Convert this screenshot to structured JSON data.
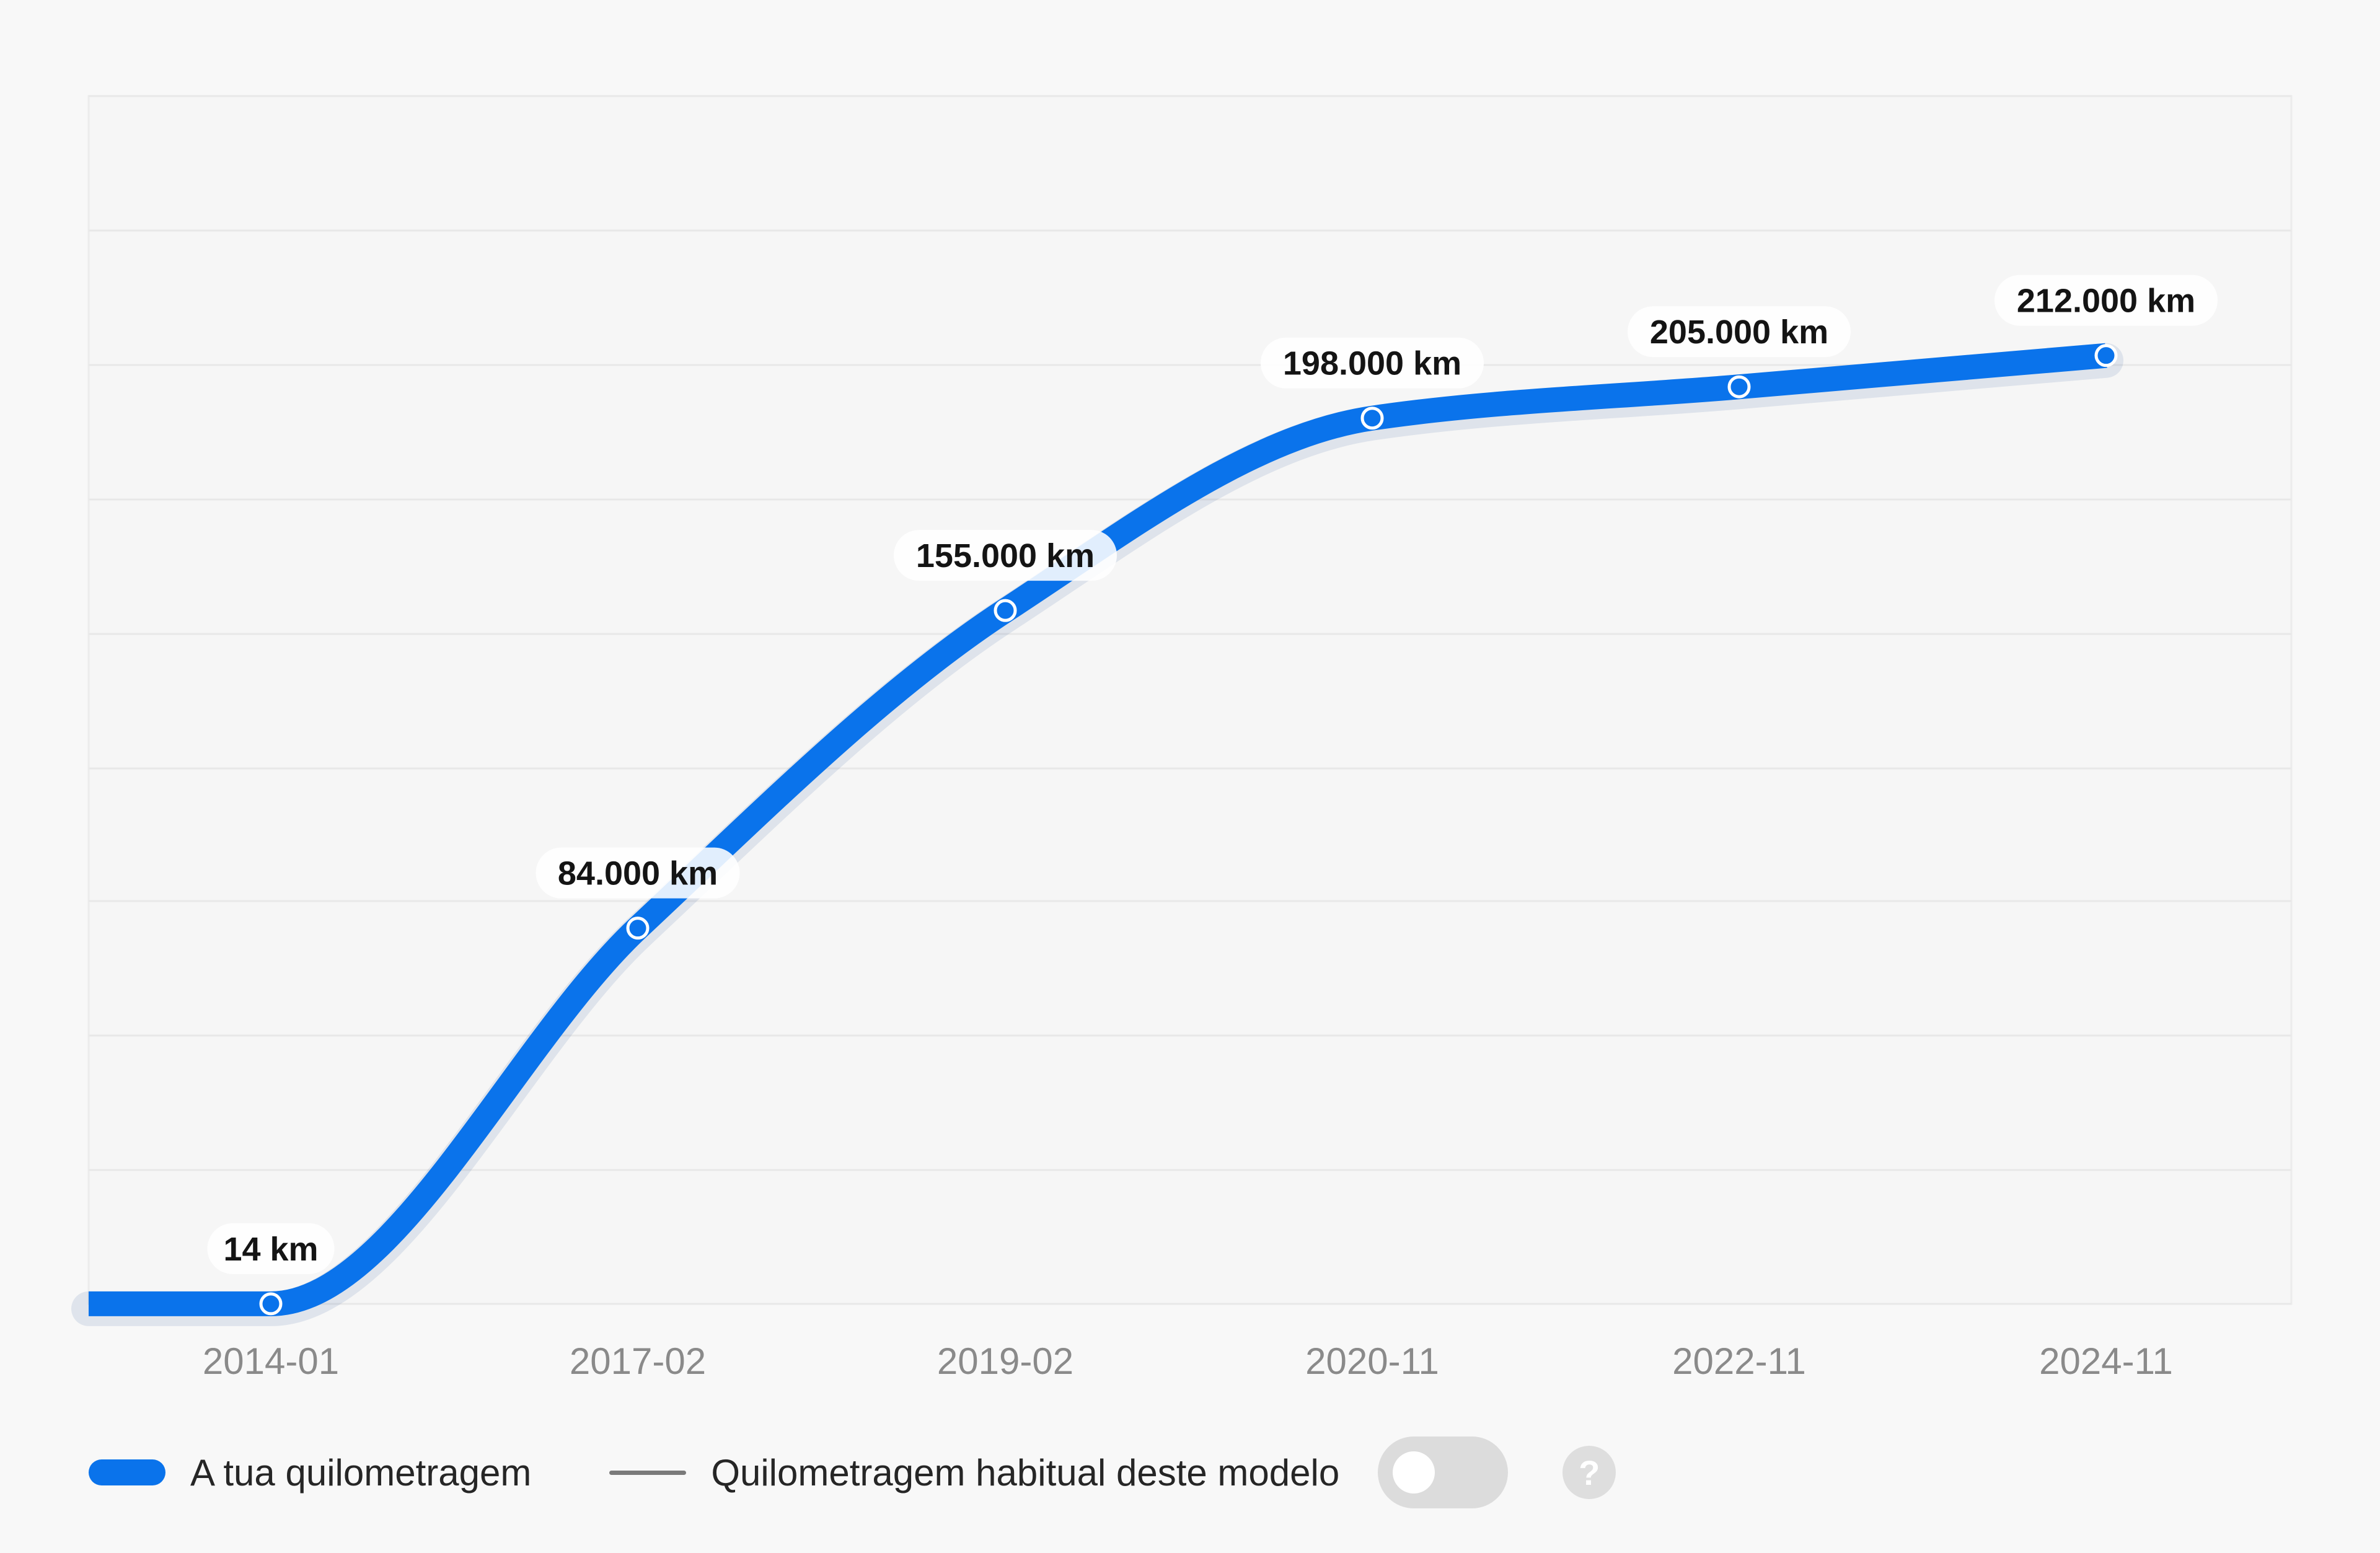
{
  "chart_data": {
    "type": "line",
    "x": [
      "2014-01",
      "2017-02",
      "2019-02",
      "2020-11",
      "2022-11",
      "2024-11"
    ],
    "series": [
      {
        "name": "A tua quilometragem",
        "values": [
          14,
          84000,
          155000,
          198000,
          205000,
          212000
        ],
        "labels": [
          "14 km",
          "84.000 km",
          "155.000 km",
          "198.000 km",
          "205.000 km",
          "212.000 km"
        ],
        "color": "#0a73eb"
      }
    ],
    "ylim": [
      0,
      270000
    ],
    "grid": true,
    "legend": "bottom-left",
    "title": "",
    "xlabel": "",
    "ylabel": ""
  },
  "legend": {
    "main_label": "A tua quilometragem",
    "typical_label": "Quilometragem habitual deste modelo",
    "toggle_on": false,
    "help_glyph": "?"
  }
}
